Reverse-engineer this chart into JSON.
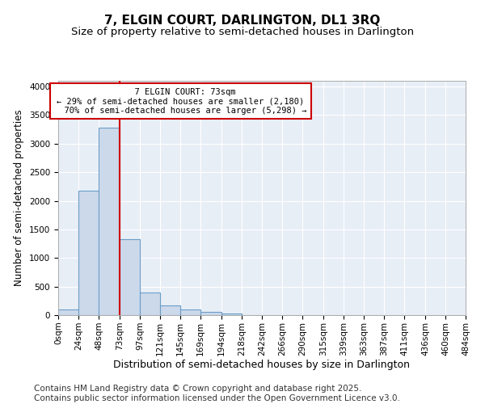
{
  "title": "7, ELGIN COURT, DARLINGTON, DL1 3RQ",
  "subtitle": "Size of property relative to semi-detached houses in Darlington",
  "xlabel": "Distribution of semi-detached houses by size in Darlington",
  "ylabel": "Number of semi-detached properties",
  "property_size": 73,
  "property_label": "7 ELGIN COURT: 73sqm",
  "pct_smaller": 29,
  "pct_larger": 70,
  "n_smaller": 2180,
  "n_larger": 5298,
  "bar_color": "#ccd9ea",
  "bar_edge_color": "#6b9ec8",
  "vline_color": "#cc0000",
  "annotation_box_color": "#cc0000",
  "background_color": "#e8eef6",
  "bins": [
    0,
    24,
    48,
    73,
    97,
    121,
    145,
    169,
    194,
    218,
    242,
    266,
    290,
    315,
    339,
    363,
    387,
    411,
    436,
    460,
    484
  ],
  "bin_labels": [
    "0sqm",
    "24sqm",
    "48sqm",
    "73sqm",
    "97sqm",
    "121sqm",
    "145sqm",
    "169sqm",
    "194sqm",
    "218sqm",
    "242sqm",
    "266sqm",
    "290sqm",
    "315sqm",
    "339sqm",
    "363sqm",
    "387sqm",
    "411sqm",
    "436sqm",
    "460sqm",
    "484sqm"
  ],
  "counts": [
    100,
    2180,
    3280,
    1330,
    400,
    170,
    100,
    50,
    30,
    0,
    0,
    0,
    0,
    0,
    0,
    0,
    0,
    0,
    0,
    0
  ],
  "ylim": [
    0,
    4100
  ],
  "yticks": [
    0,
    500,
    1000,
    1500,
    2000,
    2500,
    3000,
    3500,
    4000
  ],
  "footer": "Contains HM Land Registry data © Crown copyright and database right 2025.\nContains public sector information licensed under the Open Government Licence v3.0.",
  "footer_fontsize": 7.5,
  "title_fontsize": 11,
  "subtitle_fontsize": 9.5,
  "xlabel_fontsize": 9,
  "ylabel_fontsize": 8.5,
  "tick_labelsize": 7.5,
  "annot_fontsize": 7.5
}
